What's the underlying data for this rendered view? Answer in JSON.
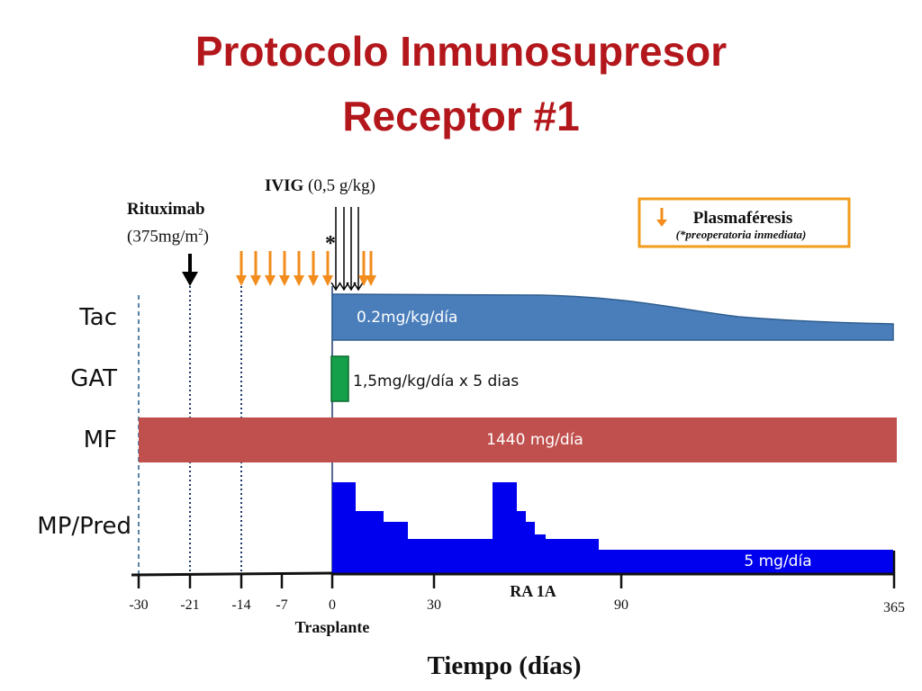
{
  "title": {
    "line1": "Protocolo Inmunosupresor",
    "line2": "Receptor #1"
  },
  "rows": {
    "tac": "Tac",
    "gat": "GAT",
    "mf": "MF",
    "mp": "MP/Pred"
  },
  "drugs": {
    "rituximab_name": "Rituximab",
    "rituximab_dose": "(375mg/m",
    "rituximab_sup": "2",
    "rituximab_close": ")",
    "ivig_name": "IVIG",
    "ivig_dose": "(0,5 g/kg)",
    "asterisk": "*"
  },
  "legend": {
    "label": "Plasmaféresis",
    "note": "(*preoperatoria inmediata)"
  },
  "bars": {
    "tac_dose": "0.2mg/kg/día",
    "gat_dose": "1,5mg/kg/día  x 5 dias",
    "mf_dose": "1440 mg/día",
    "mp_dose": "5 mg/día"
  },
  "axis": {
    "ticks": [
      "-30",
      "-21",
      "-14",
      "-7",
      "0",
      "30",
      "90",
      "365"
    ],
    "transplant": "Trasplante",
    "event": "RA 1A",
    "title": "Tiempo (días)"
  },
  "colors": {
    "title": "#b3171c",
    "tac": "#4a7ebb",
    "gat": "#14a04a",
    "mf": "#c0504d",
    "mp": "#0000ee",
    "plasmapheresis": "#f28c1c",
    "legend_border": "#f29c1c"
  }
}
